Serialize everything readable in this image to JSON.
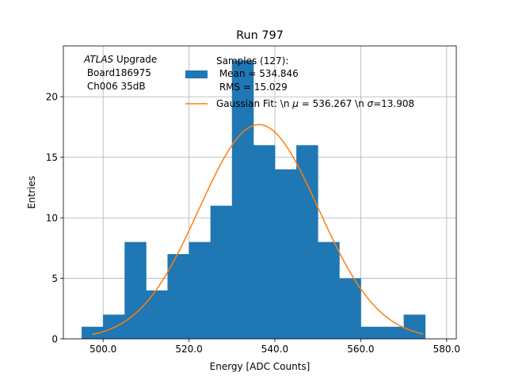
{
  "chart_data": {
    "type": "bar",
    "title": "Run 797",
    "xlabel": "Energy [ADC Counts]",
    "ylabel": "Entries",
    "xlim": [
      490.75,
      582.25
    ],
    "ylim": [
      0,
      24.2
    ],
    "x_ticks": [
      500,
      520,
      540,
      560,
      580
    ],
    "x_tick_labels": [
      "500.0",
      "520.0",
      "540.0",
      "560.0",
      "580.0"
    ],
    "y_ticks": [
      0,
      5,
      10,
      15,
      20
    ],
    "y_tick_labels": [
      "0",
      "5",
      "10",
      "15",
      "20"
    ],
    "grid": true,
    "annotation": {
      "line1_italic": "ATLAS",
      "line1_rest": " Upgrade",
      "line2": " Board186975",
      "line3": " Ch006 35dB"
    },
    "histogram": {
      "name": "Samples (127):",
      "stats": [
        " Mean = 534.846",
        " RMS = 15.029"
      ],
      "color": "#1f77b4",
      "bin_edges": [
        495,
        500,
        505,
        510,
        515,
        520,
        525,
        530,
        535,
        540,
        545,
        550,
        555,
        560,
        565,
        570,
        575
      ],
      "counts": [
        1,
        2,
        8,
        4,
        7,
        8,
        11,
        23,
        16,
        14,
        16,
        8,
        5,
        1,
        1,
        2
      ]
    },
    "fit": {
      "name_before_mu": "Gaussian Fit: \\n ",
      "mu_symbol": "μ",
      "name_mid": " = 536.267 \\n ",
      "sigma_symbol": "σ",
      "name_after_sigma": "=13.908",
      "color": "#ff7f0e",
      "mu": 536.267,
      "sigma": 13.908,
      "amplitude": 17.7,
      "x_range": [
        497.5,
        574.5
      ]
    },
    "legend_loc": "upper-right"
  }
}
